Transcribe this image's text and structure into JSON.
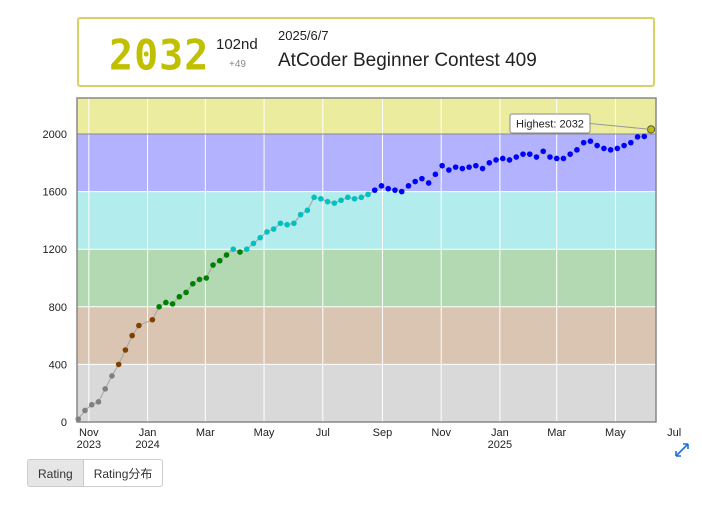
{
  "info_card": {
    "rating": "2032",
    "place": "102nd",
    "diff": "+49",
    "date": "2025/6/7",
    "contest": "AtCoder Beginner Contest 409"
  },
  "tabs": [
    {
      "label": "Rating"
    },
    {
      "label": "Rating分布"
    }
  ],
  "chart_data": {
    "type": "line",
    "title": "",
    "xlabel": "",
    "ylabel": "",
    "ylim": [
      0,
      2250
    ],
    "y_ticks": [
      "0",
      "400",
      "800",
      "1200",
      "1600",
      "2000"
    ],
    "x_ticks": [
      {
        "label": "Nov",
        "year": "2023"
      },
      {
        "label": "Jan",
        "year": "2024"
      },
      {
        "label": "Mar",
        "year": ""
      },
      {
        "label": "May",
        "year": ""
      },
      {
        "label": "Jul",
        "year": ""
      },
      {
        "label": "Sep",
        "year": ""
      },
      {
        "label": "Nov",
        "year": ""
      },
      {
        "label": "Jan",
        "year": "2025"
      },
      {
        "label": "Mar",
        "year": ""
      },
      {
        "label": "May",
        "year": ""
      },
      {
        "label": "Jul",
        "year": ""
      }
    ],
    "bands": [
      {
        "from": 0,
        "to": 400,
        "color": "#d9d9d9",
        "dot": "#808080"
      },
      {
        "from": 400,
        "to": 800,
        "color": "#d9c5b2",
        "dot": "#804000"
      },
      {
        "from": 800,
        "to": 1200,
        "color": "#b2d9b2",
        "dot": "#008000"
      },
      {
        "from": 1200,
        "to": 1600,
        "color": "#b2ecec",
        "dot": "#00c0c0"
      },
      {
        "from": 1600,
        "to": 2000,
        "color": "#b2b2ff",
        "dot": "#0000ff"
      },
      {
        "from": 2000,
        "to": 2250,
        "color": "#ecec9f",
        "dot": "#c0c000"
      }
    ],
    "grid": true,
    "annotation": "Highest: 2032",
    "series": [
      {
        "x": [
          "2023-10-21",
          "2023-10-28",
          "2023-11-04",
          "2023-11-11",
          "2023-11-18",
          "2023-11-25",
          "2023-12-02",
          "2023-12-09",
          "2023-12-16",
          "2023-12-23",
          "2024-01-06",
          "2024-01-13",
          "2024-01-20",
          "2024-01-27",
          "2024-02-03",
          "2024-02-10",
          "2024-02-17",
          "2024-02-24",
          "2024-03-02",
          "2024-03-09",
          "2024-03-16",
          "2024-03-23",
          "2024-03-30",
          "2024-04-06",
          "2024-04-13",
          "2024-04-20",
          "2024-04-27",
          "2024-05-04",
          "2024-05-11",
          "2024-05-18",
          "2024-05-25",
          "2024-06-01",
          "2024-06-08",
          "2024-06-15",
          "2024-06-22",
          "2024-06-29",
          "2024-07-06",
          "2024-07-13",
          "2024-07-20",
          "2024-07-27",
          "2024-08-03",
          "2024-08-10",
          "2024-08-17",
          "2024-08-24",
          "2024-08-31",
          "2024-09-07",
          "2024-09-14",
          "2024-09-21",
          "2024-09-28",
          "2024-10-05",
          "2024-10-12",
          "2024-10-19",
          "2024-10-26",
          "2024-11-02",
          "2024-11-09",
          "2024-11-16",
          "2024-11-23",
          "2024-11-30",
          "2024-12-07",
          "2024-12-14",
          "2024-12-21",
          "2024-12-28",
          "2025-01-04",
          "2025-01-11",
          "2025-01-18",
          "2025-01-25",
          "2025-02-01",
          "2025-02-08",
          "2025-02-15",
          "2025-02-22",
          "2025-03-01",
          "2025-03-08",
          "2025-03-15",
          "2025-03-22",
          "2025-03-29",
          "2025-04-05",
          "2025-04-12",
          "2025-04-19",
          "2025-04-26",
          "2025-05-03",
          "2025-05-10",
          "2025-05-17",
          "2025-05-24",
          "2025-05-31",
          "2025-06-07"
        ],
        "values": [
          20,
          80,
          120,
          140,
          230,
          320,
          400,
          500,
          600,
          670,
          710,
          800,
          830,
          820,
          870,
          900,
          960,
          990,
          1000,
          1090,
          1120,
          1160,
          1200,
          1180,
          1200,
          1240,
          1280,
          1320,
          1340,
          1380,
          1370,
          1380,
          1440,
          1470,
          1560,
          1550,
          1530,
          1520,
          1540,
          1560,
          1550,
          1560,
          1580,
          1610,
          1640,
          1620,
          1610,
          1600,
          1640,
          1670,
          1690,
          1660,
          1720,
          1780,
          1750,
          1770,
          1760,
          1770,
          1780,
          1760,
          1800,
          1820,
          1830,
          1820,
          1840,
          1860,
          1860,
          1840,
          1880,
          1840,
          1830,
          1830,
          1860,
          1890,
          1940,
          1950,
          1920,
          1900,
          1890,
          1900,
          1920,
          1940,
          1980,
          1983,
          2032
        ]
      }
    ]
  }
}
